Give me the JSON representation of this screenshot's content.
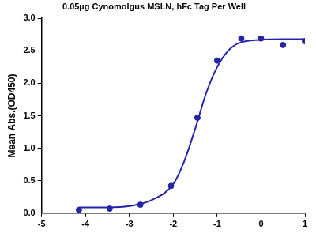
{
  "chart_data": {
    "type": "scatter",
    "title": "0.05µg Cynomolgus MSLN, hFc Tag Per Well",
    "y_label": "Mean Abs.(OD450)",
    "xlim": [
      -5,
      1
    ],
    "xticks": [
      -5,
      -4,
      -3,
      -2,
      -1,
      0,
      1
    ],
    "ylim": [
      0,
      3
    ],
    "yticks": [
      {
        "value": 0,
        "label": "0.0"
      },
      0.5,
      {
        "value": 1,
        "label": "1.0"
      },
      1.5,
      {
        "value": 2,
        "label": "2.0"
      },
      2.5,
      {
        "value": 3,
        "label": "3.0"
      }
    ],
    "grid": false,
    "series": [
      {
        "type": "scatter",
        "marker": "circle",
        "color": "#2424a8",
        "x": [
          -4.15,
          -3.45,
          -2.75,
          -2.05,
          -1.45,
          -1.0,
          -0.45,
          0.0,
          0.5,
          1.0
        ],
        "values": [
          0.05,
          0.07,
          0.13,
          0.42,
          1.47,
          2.35,
          2.69,
          2.69,
          2.59,
          2.65
        ]
      },
      {
        "type": "line",
        "line_style": "solid",
        "color": "#2424a8",
        "x": [
          -4.15,
          -3.5,
          -3.0,
          -2.5,
          -2.0,
          -1.75,
          -1.5,
          -1.25,
          -1.0,
          -0.75,
          -0.5,
          0.0,
          0.5,
          1.0
        ],
        "values": [
          0.09,
          0.09,
          0.11,
          0.2,
          0.45,
          0.8,
          1.3,
          1.85,
          2.25,
          2.5,
          2.62,
          2.67,
          2.68,
          2.68
        ]
      }
    ]
  }
}
